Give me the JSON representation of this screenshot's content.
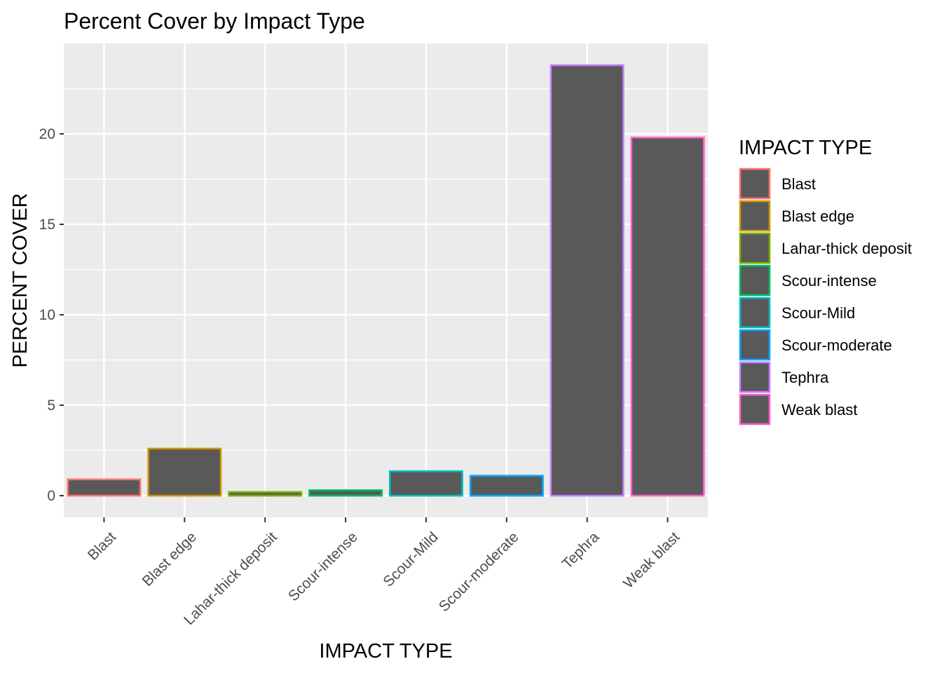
{
  "chart_data": {
    "type": "bar",
    "title": "Percent Cover by Impact Type",
    "xlabel": "IMPACT TYPE",
    "ylabel": "PERCENT COVER",
    "categories": [
      "Blast",
      "Blast edge",
      "Lahar-thick deposit",
      "Scour-intense",
      "Scour-Mild",
      "Scour-moderate",
      "Tephra",
      "Weak blast"
    ],
    "values": [
      0.9,
      2.6,
      0.2,
      0.3,
      1.35,
      1.1,
      23.8,
      19.8
    ],
    "ylim": [
      -1.2,
      25.0
    ],
    "yticks": [
      0,
      5,
      10,
      15,
      20
    ],
    "ytick_labels": [
      "0",
      "5",
      "10",
      "15",
      "20"
    ],
    "grid": true,
    "bar_fill": "#595959",
    "bar_outline_colors": [
      "#F8766D",
      "#CD9600",
      "#7CAE00",
      "#00BE67",
      "#00BFC4",
      "#00A9FF",
      "#C77CFF",
      "#FF61CC"
    ],
    "panel_background": "#EBEBEB",
    "grid_color": "#FFFFFF",
    "legend": {
      "title": "IMPACT TYPE",
      "position": "right",
      "entries": [
        "Blast",
        "Blast edge",
        "Lahar-thick deposit",
        "Scour-intense",
        "Scour-Mild",
        "Scour-moderate",
        "Tephra",
        "Weak blast"
      ]
    }
  }
}
